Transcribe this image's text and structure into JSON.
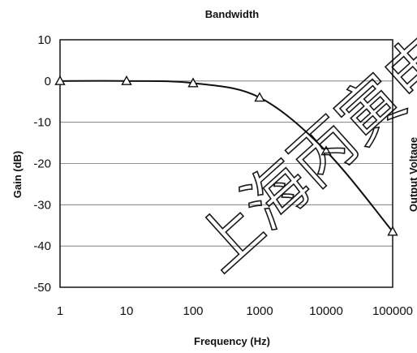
{
  "chart_data": {
    "type": "line",
    "title": "Bandwidth",
    "xlabel": "Frequency (Hz)",
    "ylabel": "Gain (dB)",
    "right_label": "Output Voltage",
    "xscale": "log",
    "xlim": [
      1,
      100000
    ],
    "ylim": [
      -50,
      10
    ],
    "x_ticks": [
      "1",
      "10",
      "100",
      "1000",
      "10000",
      "100000"
    ],
    "y_ticks": [
      "10",
      "0",
      "-10",
      "-20",
      "-30",
      "-40",
      "-50"
    ],
    "grid": true,
    "marker": "triangle",
    "series": [
      {
        "x": [
          1,
          10,
          100,
          1000,
          10000,
          100000
        ],
        "values": [
          0,
          0,
          -0.5,
          -4,
          -17,
          -36.5
        ]
      }
    ]
  },
  "watermark": "上海丙寅电子"
}
